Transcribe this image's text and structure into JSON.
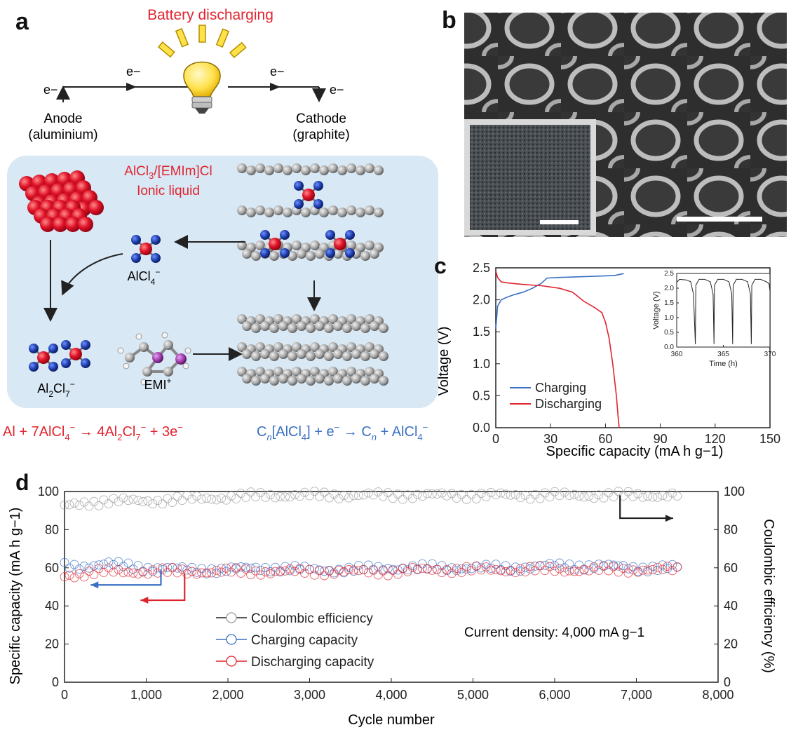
{
  "colors": {
    "red": "#e0242f",
    "blue": "#3a6fc4",
    "black": "#222222",
    "gray_circle": "#9a9a9a",
    "panel_bg": "#d8e8f4",
    "bulb_yellow": "#ffe14a"
  },
  "panel_a": {
    "letter": "a",
    "title": "Battery discharging",
    "electron_left": "e−",
    "electron_mid_left": "e−",
    "electron_mid_right": "e−",
    "electron_right": "e−",
    "anode_label": "Anode",
    "anode_material": "(aluminium)",
    "cathode_label": "Cathode",
    "cathode_material": "(graphite)",
    "electrolyte_line1": "AlCl3/[EMIm]Cl",
    "electrolyte_line2": "Ionic liquid",
    "species_alcl4": "AlCl4−",
    "species_al2cl7": "Al2Cl7−",
    "species_emi": "EMI+",
    "anode_reaction": "Al + 7AlCl4− → 4Al2Cl7− + 3e−",
    "cathode_reaction": "Cn[AlCl4] + e− → Cn + AlCl4−"
  },
  "panel_b": {
    "letter": "b"
  },
  "panel_c": {
    "letter": "c",
    "chart_data": {
      "type": "line",
      "xlabel": "Specific capacity (mA h g−1)",
      "ylabel": "Voltage (V)",
      "xlim": [
        0,
        150
      ],
      "ylim": [
        0.0,
        2.5
      ],
      "xticks": [
        "0",
        "30",
        "60",
        "90",
        "120",
        "150"
      ],
      "yticks": [
        "0.0",
        "0.5",
        "1.0",
        "1.5",
        "2.0",
        "2.5"
      ],
      "legend_position": "bottom-left",
      "series": [
        {
          "name": "Charging",
          "color": "#3a6fc4",
          "x": [
            0,
            1,
            3,
            6,
            10,
            15,
            20,
            25,
            28,
            35,
            45,
            55,
            65,
            70
          ],
          "y": [
            1.55,
            1.9,
            2.0,
            2.04,
            2.08,
            2.12,
            2.18,
            2.26,
            2.34,
            2.35,
            2.36,
            2.37,
            2.38,
            2.41
          ]
        },
        {
          "name": "Discharging",
          "color": "#e0242f",
          "x": [
            0,
            1,
            3,
            8,
            15,
            25,
            35,
            42,
            48,
            54,
            58,
            60,
            62,
            64,
            66,
            67,
            67.5
          ],
          "y": [
            2.45,
            2.35,
            2.28,
            2.26,
            2.24,
            2.22,
            2.18,
            2.12,
            1.98,
            1.88,
            1.8,
            1.65,
            1.4,
            1.0,
            0.5,
            0.15,
            0.0
          ]
        }
      ],
      "inset": {
        "type": "line",
        "xlabel": "Time (h)",
        "ylabel": "Voltage (V)",
        "xlim": [
          360,
          370
        ],
        "ylim": [
          0.0,
          2.5
        ],
        "xticks": [
          "360",
          "365",
          "370"
        ],
        "yticks": [
          "0.0",
          "0.5",
          "1.0",
          "1.5",
          "2.0",
          "2.5"
        ],
        "series": [
          {
            "name": "",
            "color": "#222222",
            "x": [
              360.0,
              360.3,
              361.0,
              361.5,
              361.8,
              362.0,
              362.05,
              362.4,
              363.0,
              363.6,
              363.9,
              364.0,
              364.05,
              364.4,
              365.0,
              365.6,
              365.9,
              366.0,
              366.05,
              366.4,
              367.0,
              367.6,
              367.9,
              368.0,
              368.05,
              368.4,
              369.0,
              369.6,
              369.9,
              370.0
            ],
            "y": [
              2.2,
              2.3,
              2.28,
              2.22,
              1.8,
              0.1,
              2.1,
              2.3,
              2.3,
              2.22,
              1.8,
              0.1,
              2.1,
              2.3,
              2.3,
              2.22,
              1.8,
              0.1,
              2.1,
              2.3,
              2.3,
              2.22,
              1.8,
              0.1,
              2.1,
              2.3,
              2.3,
              2.22,
              2.15,
              1.9
            ]
          }
        ]
      }
    }
  },
  "panel_d": {
    "letter": "d",
    "annotation": "Current density: 4,000 mA g−1",
    "chart_data": {
      "type": "scatter",
      "xlabel": "Cycle number",
      "ylabel_left": "Specific capacity (mA h g−1)",
      "ylabel_right": "Coulombic efficiency (%)",
      "xlim": [
        0,
        8000
      ],
      "ylim": [
        0,
        100
      ],
      "xticks": [
        "0",
        "1,000",
        "2,000",
        "3,000",
        "4,000",
        "5,000",
        "6,000",
        "7,000",
        "8,000"
      ],
      "yticks_left": [
        "0",
        "20",
        "40",
        "60",
        "80",
        "100"
      ],
      "yticks_right": [
        "0",
        "20",
        "40",
        "60",
        "80",
        "100"
      ],
      "legend_position": "bottom-left",
      "series": [
        {
          "name": "Coulombic efficiency",
          "color": "#9a9a9a",
          "axis": "right",
          "x": [
            0,
            250,
            500,
            1000,
            1500,
            2000,
            2500,
            3000,
            3500,
            4000,
            4500,
            5000,
            5500,
            6000,
            6500,
            7000,
            7550
          ],
          "y": [
            92,
            94,
            95,
            95,
            96,
            97,
            98,
            98,
            98,
            98,
            98,
            98,
            98,
            98,
            98,
            98,
            98
          ]
        },
        {
          "name": "Charging capacity",
          "color": "#3a6fc4",
          "axis": "left",
          "x": [
            0,
            250,
            500,
            1000,
            1500,
            2000,
            2500,
            3000,
            3500,
            4000,
            4500,
            5000,
            5500,
            6000,
            6500,
            7000,
            7550
          ],
          "y": [
            61,
            61,
            62,
            60,
            59,
            59,
            60,
            59,
            59,
            60,
            60,
            60,
            60,
            61,
            61,
            60,
            60
          ]
        },
        {
          "name": "Discharging capacity",
          "color": "#e0242f",
          "axis": "left",
          "x": [
            0,
            250,
            500,
            1000,
            1500,
            2000,
            2500,
            3000,
            3500,
            4000,
            4500,
            5000,
            5500,
            6000,
            6500,
            7000,
            7550
          ],
          "y": [
            56,
            57,
            58,
            58,
            58,
            58,
            58,
            58,
            58,
            58,
            59,
            59,
            59,
            59,
            59,
            59,
            59
          ]
        }
      ]
    }
  }
}
